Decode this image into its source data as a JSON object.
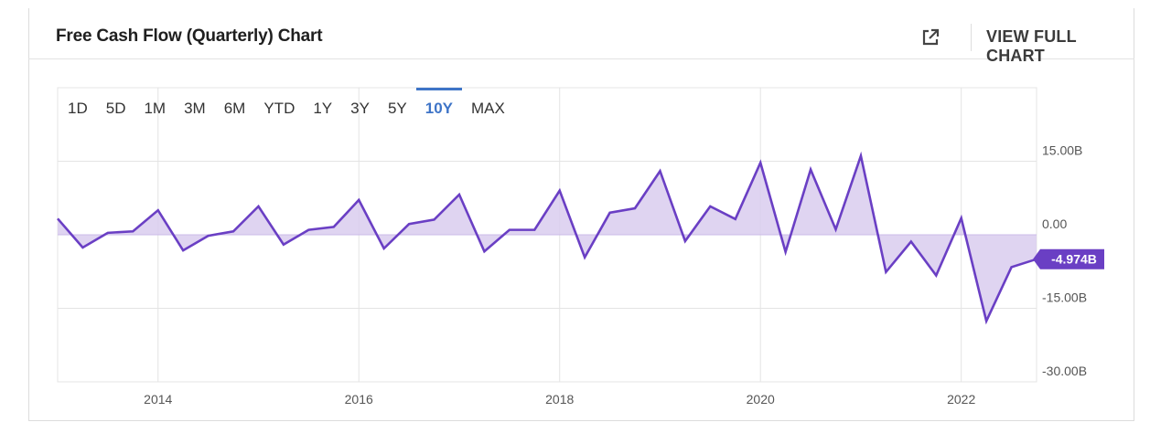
{
  "header": {
    "title": "Free Cash Flow (Quarterly) Chart",
    "view_full_chart": "VIEW FULL CHART",
    "external_link_icon": "external-link-icon"
  },
  "range_buttons": [
    {
      "label": "1D",
      "active": false
    },
    {
      "label": "5D",
      "active": false
    },
    {
      "label": "1M",
      "active": false
    },
    {
      "label": "3M",
      "active": false
    },
    {
      "label": "6M",
      "active": false
    },
    {
      "label": "YTD",
      "active": false
    },
    {
      "label": "1Y",
      "active": false
    },
    {
      "label": "3Y",
      "active": false
    },
    {
      "label": "5Y",
      "active": false
    },
    {
      "label": "10Y",
      "active": true
    },
    {
      "label": "MAX",
      "active": false
    }
  ],
  "colors": {
    "line": "#6a3fc4",
    "fill": "#d9cdef",
    "active_range": "#3e74c7",
    "last_value_badge": "#6a3fc4",
    "grid": "#e4e4e4"
  },
  "chart_data": {
    "type": "area",
    "title": "Free Cash Flow (Quarterly) Chart",
    "xlabel": "",
    "ylabel": "",
    "x_ticks": [
      "2014",
      "2016",
      "2018",
      "2020",
      "2022"
    ],
    "y_ticks": [
      "15.00B",
      "0.00",
      "-15.00B",
      "-30.00B"
    ],
    "y_tick_values": [
      15,
      0,
      -15,
      -30
    ],
    "ylim": [
      -30,
      30
    ],
    "xlim": [
      "2013-01",
      "2022-10"
    ],
    "grid": true,
    "last_value_label": "-4.974B",
    "series": [
      {
        "unit": "B",
        "x": [
          "2013-01",
          "2013-04",
          "2013-07",
          "2013-10",
          "2014-01",
          "2014-04",
          "2014-07",
          "2014-10",
          "2015-01",
          "2015-04",
          "2015-07",
          "2015-10",
          "2016-01",
          "2016-04",
          "2016-07",
          "2016-10",
          "2017-01",
          "2017-04",
          "2017-07",
          "2017-10",
          "2018-01",
          "2018-04",
          "2018-07",
          "2018-10",
          "2019-01",
          "2019-04",
          "2019-07",
          "2019-10",
          "2020-01",
          "2020-04",
          "2020-07",
          "2020-10",
          "2021-01",
          "2021-04",
          "2021-07",
          "2021-10",
          "2022-01",
          "2022-04",
          "2022-07",
          "2022-10"
        ],
        "values": [
          3.3,
          -2.6,
          0.4,
          0.7,
          5.0,
          -3.2,
          -0.2,
          0.7,
          5.8,
          -2.0,
          1.0,
          1.6,
          7.1,
          -2.8,
          2.2,
          3.1,
          8.2,
          -3.4,
          1.0,
          1.0,
          9.0,
          -4.6,
          4.5,
          5.4,
          13.0,
          -1.3,
          5.8,
          3.2,
          14.7,
          -3.5,
          13.3,
          1.1,
          16.1,
          -7.6,
          -1.4,
          -8.3,
          3.4,
          -17.6,
          -6.6,
          -4.974
        ]
      }
    ]
  }
}
